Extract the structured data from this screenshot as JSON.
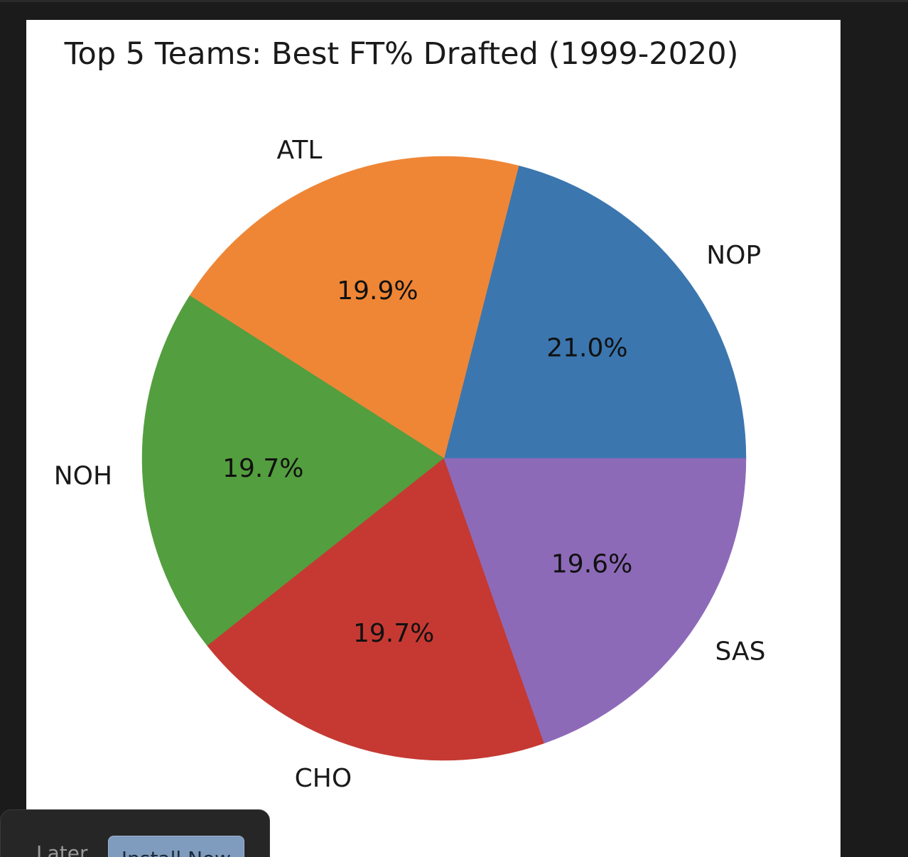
{
  "chart_data": {
    "type": "pie",
    "title": "Top 5 Teams: Best FT% Drafted (1999-2020)",
    "categories": [
      "NOP",
      "ATL",
      "NOH",
      "CHO",
      "SAS"
    ],
    "values": [
      21.0,
      19.9,
      19.7,
      19.7,
      19.6
    ],
    "pct_labels": [
      "21.0%",
      "19.9%",
      "19.7%",
      "19.7%",
      "19.6%"
    ],
    "colors": [
      "#3b76af",
      "#ef8636",
      "#539e3e",
      "#c53932",
      "#8d6ab8"
    ],
    "start_angle_deg": 0,
    "direction": "counterclockwise",
    "legend": "none"
  },
  "toast": {
    "later_label": "Later",
    "install_label": "Install Now"
  }
}
